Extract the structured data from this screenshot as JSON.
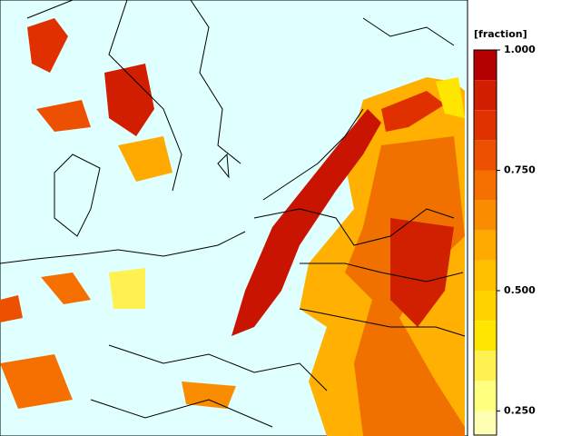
{
  "colorbar": {
    "label": "[fraction]",
    "ylim": [
      0.2,
      1.0
    ],
    "ticks": [
      {
        "value": 1.0,
        "label": "1.000"
      },
      {
        "value": 0.75,
        "label": "0.750"
      },
      {
        "value": 0.5,
        "label": "0.500"
      },
      {
        "value": 0.25,
        "label": "0.250"
      }
    ],
    "bands": [
      {
        "from": 0.9375,
        "to": 1.0,
        "color": "#b40000"
      },
      {
        "from": 0.875,
        "to": 0.9375,
        "color": "#d21e00"
      },
      {
        "from": 0.8125,
        "to": 0.875,
        "color": "#e03200"
      },
      {
        "from": 0.75,
        "to": 0.8125,
        "color": "#ec5000"
      },
      {
        "from": 0.6875,
        "to": 0.75,
        "color": "#f57000"
      },
      {
        "from": 0.625,
        "to": 0.6875,
        "color": "#fa8c00"
      },
      {
        "from": 0.5625,
        "to": 0.625,
        "color": "#ffaa00"
      },
      {
        "from": 0.5,
        "to": 0.5625,
        "color": "#ffc000"
      },
      {
        "from": 0.4375,
        "to": 0.5,
        "color": "#ffd200"
      },
      {
        "from": 0.375,
        "to": 0.4375,
        "color": "#ffe600"
      },
      {
        "from": 0.3125,
        "to": 0.375,
        "color": "#fff250"
      },
      {
        "from": 0.25,
        "to": 0.3125,
        "color": "#ffff80"
      },
      {
        "from": 0.2,
        "to": 0.25,
        "color": "#ffffb4"
      }
    ]
  }
}
